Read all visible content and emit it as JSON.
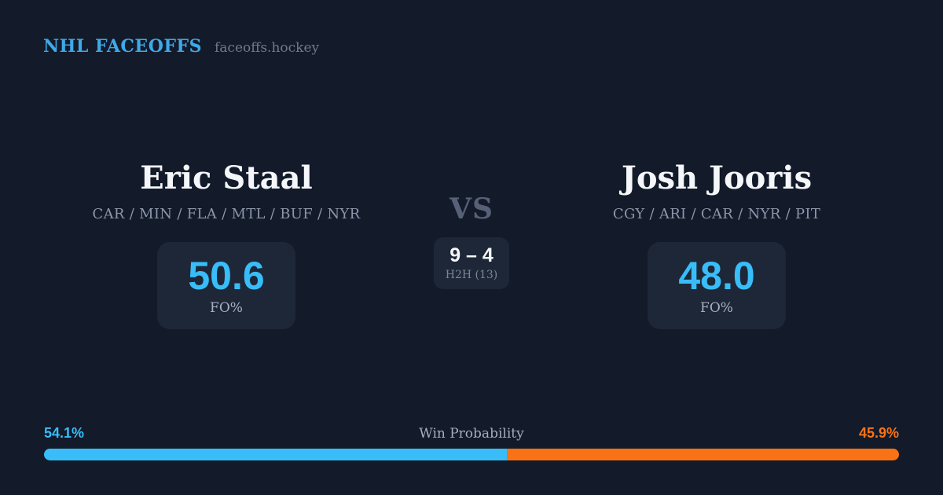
{
  "header": {
    "brand": "NHL FACEOFFS",
    "site": "faceoffs.hockey"
  },
  "matchup": {
    "vs_label": "VS",
    "player_left": {
      "name": "Eric Staal",
      "teams": "CAR / MIN / FLA / MTL / BUF / NYR",
      "stat_value": "50.6",
      "stat_label": "FO%"
    },
    "player_right": {
      "name": "Josh Jooris",
      "teams": "CGY / ARI / CAR / NYR / PIT",
      "stat_value": "48.0",
      "stat_label": "FO%"
    },
    "h2h": {
      "score": "9 – 4",
      "label": "H2H (13)"
    }
  },
  "win_probability": {
    "title": "Win Probability",
    "left_pct_label": "54.1%",
    "right_pct_label": "45.9%",
    "left_value": 54.1,
    "right_value": 45.9
  },
  "colors": {
    "background": "#131A2A",
    "card": "#1E2737",
    "header_blue": "#3FA9E8",
    "accent_blue": "#38BDF8",
    "accent_orange": "#F97316",
    "muted": "#8C96AA",
    "muted_dim": "#717A8C"
  }
}
